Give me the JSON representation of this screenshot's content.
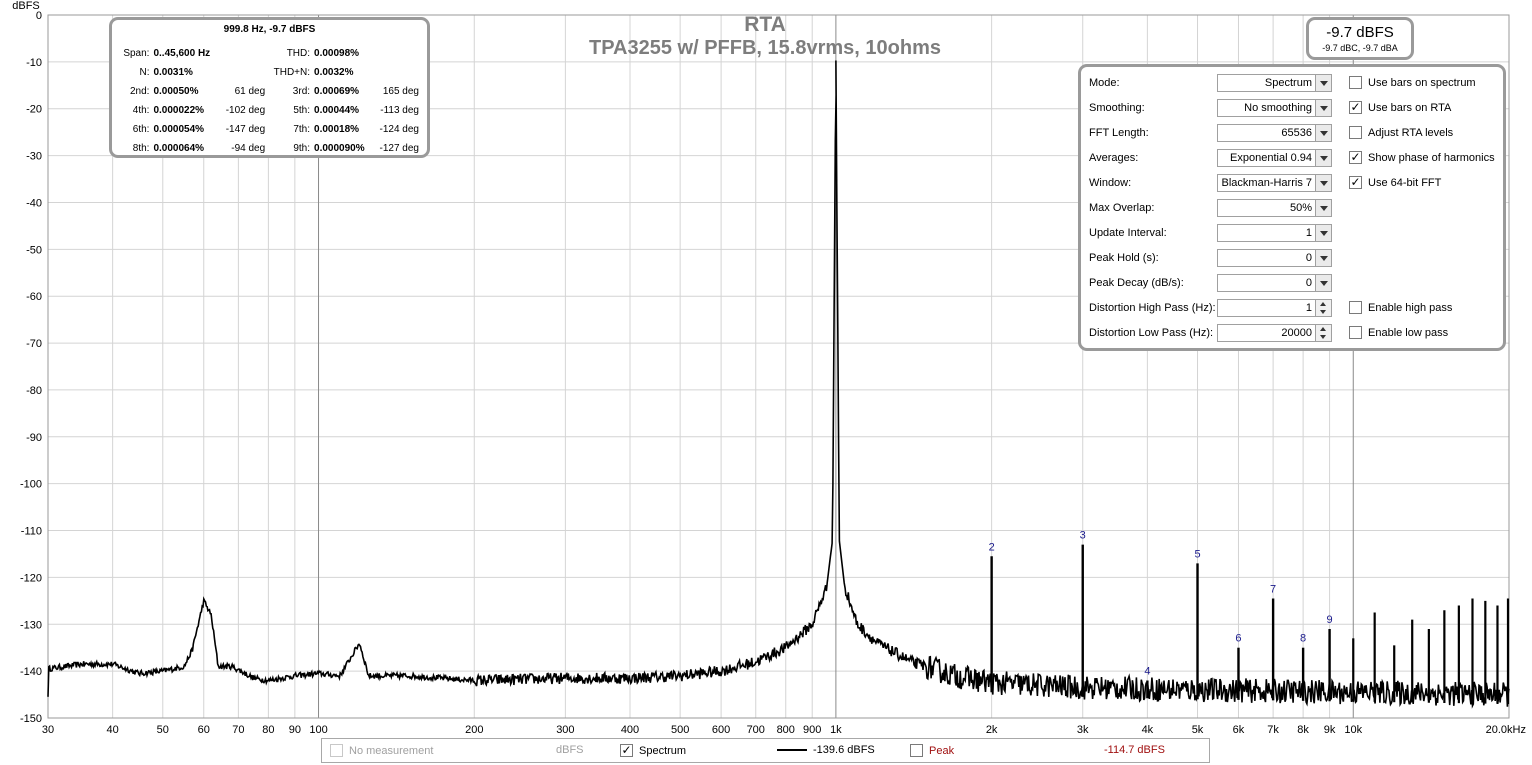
{
  "chart_data": {
    "type": "line",
    "title": "RTA",
    "subtitle": "TPA3255 w/ PFFB, 15.8vrms, 10ohms",
    "ylabel": "dBFS",
    "x_scale": "log",
    "xlim": [
      30,
      20000
    ],
    "ylim": [
      -150,
      0
    ],
    "grid": true,
    "x_ticks": [
      30,
      40,
      50,
      60,
      70,
      80,
      90,
      100,
      200,
      300,
      400,
      500,
      600,
      700,
      800,
      900,
      1000,
      2000,
      3000,
      4000,
      5000,
      6000,
      7000,
      8000,
      9000,
      10000,
      20000
    ],
    "x_tick_labels": [
      "30",
      "40",
      "50",
      "60",
      "70",
      "80",
      "90",
      "100",
      "200",
      "300",
      "400",
      "500",
      "600",
      "700",
      "800",
      "900",
      "1k",
      "2k",
      "3k",
      "4k",
      "5k",
      "6k",
      "7k",
      "8k",
      "9k",
      "10k",
      "20.0kHz"
    ],
    "y_ticks": [
      0,
      -10,
      -20,
      -30,
      -40,
      -50,
      -60,
      -70,
      -80,
      -90,
      -100,
      -110,
      -120,
      -130,
      -140,
      -150
    ],
    "y_tick_labels": [
      "0",
      "-10",
      "-20",
      "-30",
      "-40",
      "-50",
      "-60",
      "-70",
      "-80",
      "-90",
      "-100",
      "-110",
      "-120",
      "-130",
      "-140",
      "-150"
    ],
    "series": [
      {
        "name": "Spectrum",
        "color": "#000000",
        "noise_floor": [
          [
            30,
            -139.5
          ],
          [
            35,
            -138.5
          ],
          [
            40,
            -138.5
          ],
          [
            45,
            -140.5
          ],
          [
            50,
            -140
          ],
          [
            55,
            -139
          ],
          [
            57,
            -135.5
          ],
          [
            60,
            -125
          ],
          [
            62,
            -128
          ],
          [
            64,
            -139
          ],
          [
            68,
            -139
          ],
          [
            75,
            -141.5
          ],
          [
            80,
            -142
          ],
          [
            90,
            -141
          ],
          [
            100,
            -140.5
          ],
          [
            110,
            -141
          ],
          [
            120,
            -134
          ],
          [
            125,
            -141
          ],
          [
            150,
            -141
          ],
          [
            200,
            -142
          ],
          [
            300,
            -141.5
          ],
          [
            400,
            -141.5
          ],
          [
            500,
            -141
          ],
          [
            600,
            -140
          ],
          [
            700,
            -138
          ],
          [
            800,
            -135
          ],
          [
            900,
            -130
          ],
          [
            960,
            -122
          ],
          [
            985,
            -112
          ],
          [
            1000,
            -9.7
          ],
          [
            1015,
            -112
          ],
          [
            1040,
            -122
          ],
          [
            1100,
            -130
          ],
          [
            1200,
            -134
          ],
          [
            1400,
            -138
          ],
          [
            1700,
            -141
          ],
          [
            2000,
            -142.5
          ],
          [
            3000,
            -143.5
          ],
          [
            5000,
            -144
          ],
          [
            10000,
            -144.5
          ],
          [
            20000,
            -145
          ]
        ],
        "harmonics": [
          {
            "label": "2",
            "x": 2000,
            "y": -115.5
          },
          {
            "label": "3",
            "x": 3000,
            "y": -113
          },
          {
            "label": "4",
            "x": 4000,
            "y": -142
          },
          {
            "label": "5",
            "x": 5000,
            "y": -117
          },
          {
            "label": "6",
            "x": 6000,
            "y": -135
          },
          {
            "label": "7",
            "x": 7000,
            "y": -124.5
          },
          {
            "label": "8",
            "x": 8000,
            "y": -135
          },
          {
            "label": "9",
            "x": 9000,
            "y": -131
          }
        ],
        "extra_spurs": [
          [
            10000,
            -133
          ],
          [
            11000,
            -127.5
          ],
          [
            12000,
            -134.5
          ],
          [
            13000,
            -129
          ],
          [
            14000,
            -131
          ],
          [
            15000,
            -127
          ],
          [
            16000,
            -126
          ],
          [
            17000,
            -124.5
          ],
          [
            18000,
            -125
          ],
          [
            19000,
            -126
          ],
          [
            20000,
            -124.5
          ]
        ]
      }
    ]
  },
  "stats": {
    "header": "999.8 Hz, -9.7 dBFS",
    "rows": [
      {
        "k1": "Span:",
        "v1": "0..45,600 Hz",
        "p1": "",
        "k2": "THD:",
        "v2": "0.00098%",
        "p2": ""
      },
      {
        "k1": "N:",
        "v1": "0.0031%",
        "p1": "",
        "k2": "THD+N:",
        "v2": "0.0032%",
        "p2": ""
      },
      {
        "k1": "2nd:",
        "v1": "0.00050%",
        "p1": "61 deg",
        "k2": "3rd:",
        "v2": "0.00069%",
        "p2": "165 deg"
      },
      {
        "k1": "4th:",
        "v1": "0.000022%",
        "p1": "-102 deg",
        "k2": "5th:",
        "v2": "0.00044%",
        "p2": "-113 deg"
      },
      {
        "k1": "6th:",
        "v1": "0.000054%",
        "p1": "-147 deg",
        "k2": "7th:",
        "v2": "0.00018%",
        "p2": "-124 deg"
      },
      {
        "k1": "8th:",
        "v1": "0.000064%",
        "p1": "-94 deg",
        "k2": "9th:",
        "v2": "0.000090%",
        "p2": "-127 deg"
      }
    ]
  },
  "level": {
    "main": "-9.7 dBFS",
    "sub": "-9.7 dBC, -9.7 dBA"
  },
  "controls": {
    "rows": [
      {
        "label": "Mode:",
        "value": "Spectrum",
        "spin": false
      },
      {
        "label": "Smoothing:",
        "value": "No  smoothing",
        "spin": false
      },
      {
        "label": "FFT Length:",
        "value": "65536",
        "spin": false
      },
      {
        "label": "Averages:",
        "value": "Exponential 0.94",
        "spin": false
      },
      {
        "label": "Window:",
        "value": "Blackman-Harris 7",
        "spin": false
      },
      {
        "label": "Max Overlap:",
        "value": "50%",
        "spin": false
      },
      {
        "label": "Update Interval:",
        "value": "1",
        "spin": false
      },
      {
        "label": "Peak Hold (s):",
        "value": "0",
        "spin": false
      },
      {
        "label": "Peak Decay (dB/s):",
        "value": "0",
        "spin": false
      },
      {
        "label": "Distortion High Pass (Hz):",
        "value": "1",
        "spin": true
      },
      {
        "label": "Distortion Low Pass (Hz):",
        "value": "20000",
        "spin": true
      }
    ],
    "checks": [
      {
        "label": "Use bars on spectrum",
        "checked": false,
        "row": 0
      },
      {
        "label": "Use bars on RTA",
        "checked": true,
        "row": 1
      },
      {
        "label": "Adjust RTA levels",
        "checked": false,
        "row": 2
      },
      {
        "label": "Show phase of harmonics",
        "checked": true,
        "row": 3
      },
      {
        "label": "Use 64-bit FFT",
        "checked": true,
        "row": 4
      },
      {
        "label": "Enable high pass",
        "checked": false,
        "row": 9
      },
      {
        "label": "Enable low pass",
        "checked": false,
        "row": 10
      }
    ]
  },
  "legend": {
    "no_measurement": "No measurement",
    "no_measurement_unit": "dBFS",
    "spectrum_label": "Spectrum",
    "spectrum_value": "-139.6 dBFS",
    "peak_label": "Peak",
    "peak_value": "-114.7 dBFS",
    "spectrum_checked": true,
    "peak_checked": false
  }
}
